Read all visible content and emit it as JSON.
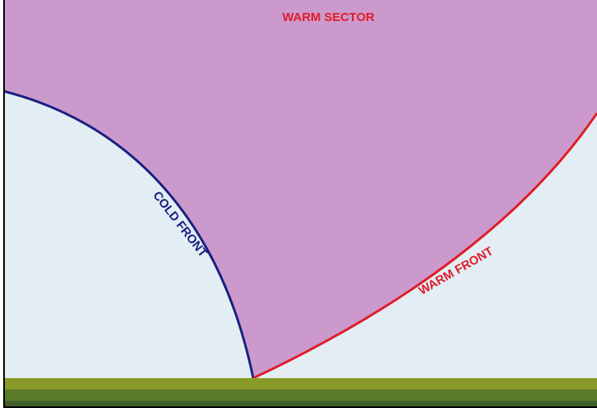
{
  "labels": {
    "warm_sector": "WARM SECTOR",
    "cold_front": "COLD FRONT",
    "warm_front": "WARM FRONT"
  }
}
